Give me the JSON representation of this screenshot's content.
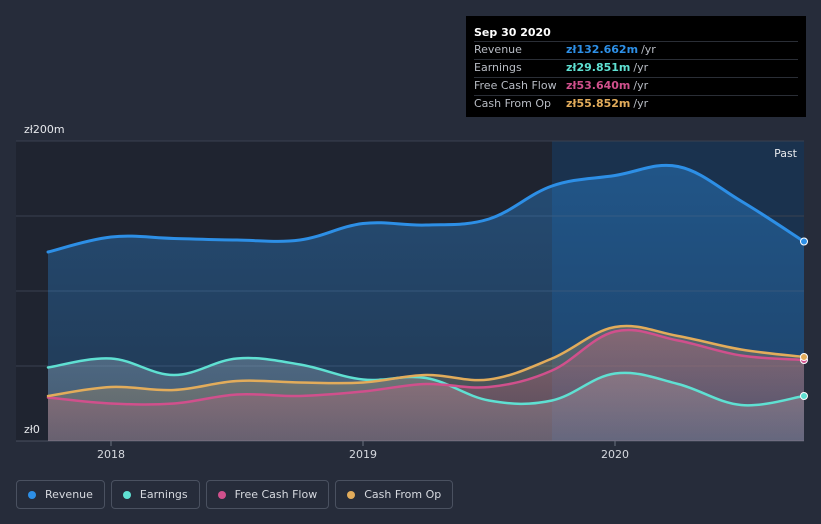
{
  "chart_data": {
    "type": "area",
    "title": "",
    "xlabel": "",
    "ylabel": "",
    "y_tick_labels": [
      "zł200m",
      "zł0"
    ],
    "ylim": [
      0,
      200
    ],
    "xlim": [
      2017.7,
      2020.75
    ],
    "x_ticks": [
      {
        "value": 2018.0,
        "label": "2018"
      },
      {
        "value": 2019.0,
        "label": "2019"
      },
      {
        "value": 2020.0,
        "label": "2020"
      }
    ],
    "past_start": 2019.75,
    "past_label": "Past",
    "grid": true,
    "series": [
      {
        "name": "Revenue",
        "color": "#2d8fe6",
        "x": [
          2017.75,
          2018.0,
          2018.25,
          2018.5,
          2018.75,
          2019.0,
          2019.25,
          2019.5,
          2019.75,
          2020.0,
          2020.25,
          2020.5,
          2020.75
        ],
        "values": [
          126,
          136,
          135,
          134,
          134,
          145,
          144,
          148,
          170,
          177,
          183,
          160,
          133
        ]
      },
      {
        "name": "Earnings",
        "color": "#5fe0d2",
        "x": [
          2017.75,
          2018.0,
          2018.25,
          2018.5,
          2018.75,
          2019.0,
          2019.25,
          2019.5,
          2019.75,
          2020.0,
          2020.25,
          2020.5,
          2020.75
        ],
        "values": [
          49,
          55,
          44,
          55,
          51,
          41,
          42,
          27,
          27,
          45,
          38,
          24,
          30
        ]
      },
      {
        "name": "Free Cash Flow",
        "color": "#d0508c",
        "x": [
          2017.75,
          2018.0,
          2018.25,
          2018.5,
          2018.75,
          2019.0,
          2019.25,
          2019.5,
          2019.75,
          2020.0,
          2020.25,
          2020.5,
          2020.75
        ],
        "values": [
          29,
          25,
          25,
          31,
          30,
          33,
          38,
          36,
          47,
          73,
          67,
          57,
          54
        ]
      },
      {
        "name": "Cash From Op",
        "color": "#e2ac5b",
        "x": [
          2017.75,
          2018.0,
          2018.25,
          2018.5,
          2018.75,
          2019.0,
          2019.25,
          2019.5,
          2019.75,
          2020.0,
          2020.25,
          2020.5,
          2020.75
        ],
        "values": [
          30,
          36,
          34,
          40,
          39,
          39,
          44,
          41,
          55,
          76,
          70,
          61,
          56
        ]
      }
    ]
  },
  "tooltip": {
    "date": "Sep 30 2020",
    "rows": [
      {
        "label": "Revenue",
        "value": "zł132.662m",
        "unit": "/yr",
        "color": "#2d8fe6"
      },
      {
        "label": "Earnings",
        "value": "zł29.851m",
        "unit": "/yr",
        "color": "#5fe0d2"
      },
      {
        "label": "Free Cash Flow",
        "value": "zł53.640m",
        "unit": "/yr",
        "color": "#d0508c"
      },
      {
        "label": "Cash From Op",
        "value": "zł55.852m",
        "unit": "/yr",
        "color": "#e2ac5b"
      }
    ]
  },
  "legend": [
    {
      "label": "Revenue",
      "color": "#2d8fe6"
    },
    {
      "label": "Earnings",
      "color": "#5fe0d2"
    },
    {
      "label": "Free Cash Flow",
      "color": "#d0508c"
    },
    {
      "label": "Cash From Op",
      "color": "#e2ac5b"
    }
  ]
}
